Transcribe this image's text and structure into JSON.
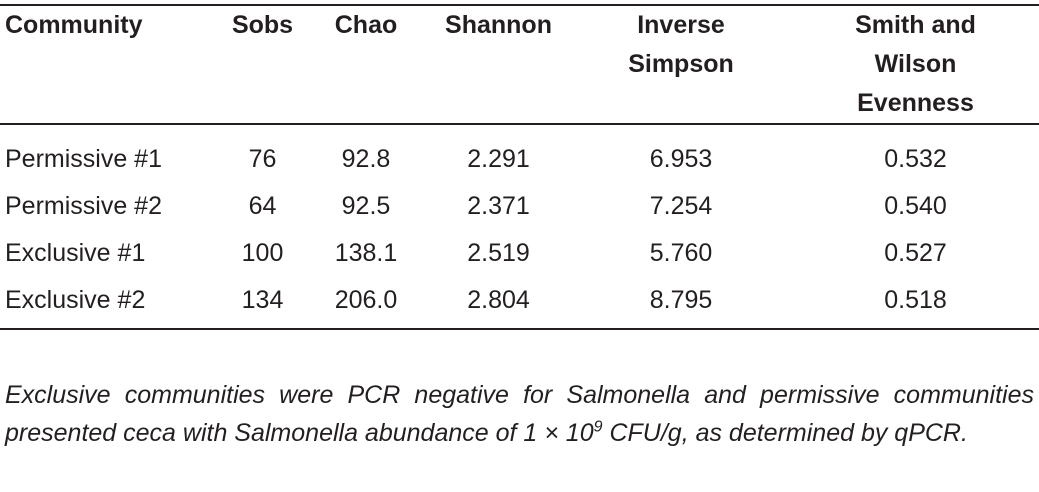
{
  "table": {
    "headers": {
      "community": "Community",
      "sobs": "Sobs",
      "chao": "Chao",
      "shannon": "Shannon",
      "inverse_simpson": [
        "Inverse",
        "Simpson"
      ],
      "evenness": [
        "Smith and",
        "Wilson",
        "Evenness"
      ]
    },
    "rows": [
      {
        "community": "Permissive #1",
        "sobs": "76",
        "chao": "92.8",
        "shannon": "2.291",
        "inverse_simpson": "6.953",
        "evenness": "0.532"
      },
      {
        "community": "Permissive #2",
        "sobs": "64",
        "chao": "92.5",
        "shannon": "2.371",
        "inverse_simpson": "7.254",
        "evenness": "0.540"
      },
      {
        "community": "Exclusive #1",
        "sobs": "100",
        "chao": "138.1",
        "shannon": "2.519",
        "inverse_simpson": "5.760",
        "evenness": "0.527"
      },
      {
        "community": "Exclusive #2",
        "sobs": "134",
        "chao": "206.0",
        "shannon": "2.804",
        "inverse_simpson": "8.795",
        "evenness": "0.518"
      }
    ]
  },
  "footnote": {
    "text_before": "Exclusive communities were PCR negative for Salmonella and permissive communities presented ceca with Salmonella abundance of 1 × 10",
    "superscript": "9",
    "text_after": " CFU/g, as determined by qPCR."
  }
}
